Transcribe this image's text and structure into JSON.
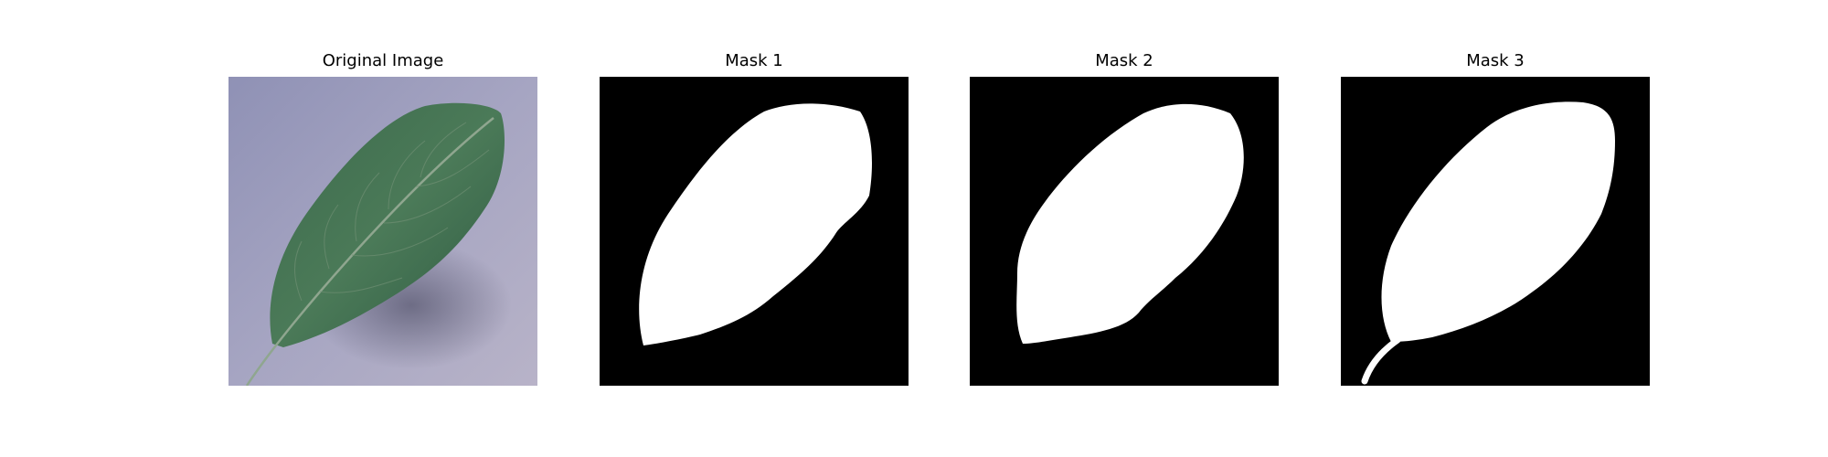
{
  "panels": [
    {
      "title": "Original Image",
      "content": "photo"
    },
    {
      "title": "Mask 1",
      "content": "mask"
    },
    {
      "title": "Mask 2",
      "content": "mask"
    },
    {
      "title": "Mask 3",
      "content": "mask"
    }
  ],
  "colors": {
    "mask_background": "#000000",
    "mask_foreground": "#ffffff",
    "leaf_green": "#3f6b4b",
    "surface_lavender": "#a3a3c0"
  }
}
